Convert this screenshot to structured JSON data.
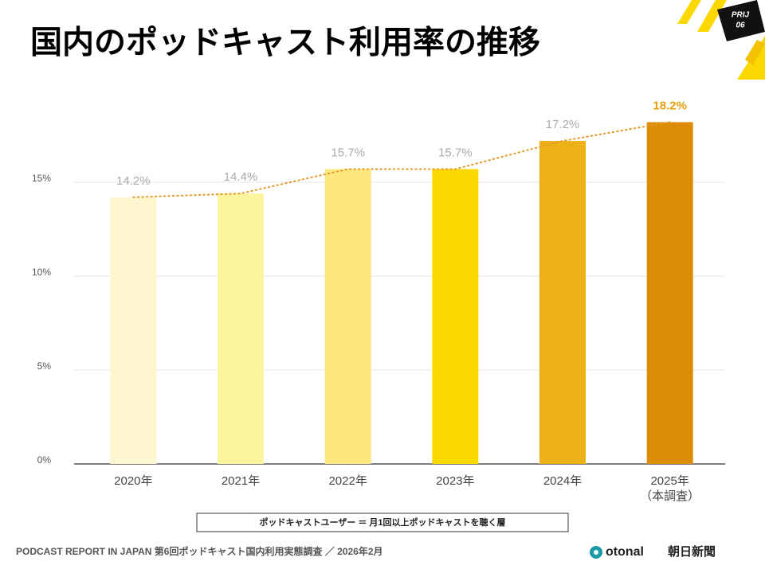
{
  "badge": {
    "line1": "PRIJ",
    "line2": "06"
  },
  "chart_data": {
    "type": "bar",
    "title": "国内のポッドキャスト利用率の推移",
    "categories": [
      "2020年",
      "2021年",
      "2022年",
      "2023年",
      "2024年",
      "2025年\n（本調査）"
    ],
    "values": [
      14.2,
      14.4,
      15.7,
      15.7,
      17.2,
      18.2
    ],
    "value_labels": [
      "14.2%",
      "14.4%",
      "15.7%",
      "15.7%",
      "17.2%",
      "18.2%"
    ],
    "colors": [
      "#fdf6cf",
      "#fdf49e",
      "#fce87c",
      "#fad800",
      "#edb118",
      "#dd8c06"
    ],
    "trendline": true,
    "trendline_color": "#e39a2a",
    "ylim": [
      0,
      20
    ],
    "yticks": [
      {
        "value": 0,
        "label": "0%"
      },
      {
        "value": 5,
        "label": "5%"
      },
      {
        "value": 10,
        "label": "10%"
      },
      {
        "value": 15,
        "label": "15%"
      }
    ],
    "grid": true,
    "note": "ポッドキャストユーザー ＝ 月1回以上ポッドキャストを聴く層"
  },
  "footer": {
    "text": "PODCAST REPORT IN JAPAN 第6回ポッドキャスト国内利用実態調査 ／ 2026年2月",
    "logo1": "otonal",
    "logo2": "朝日新聞"
  }
}
